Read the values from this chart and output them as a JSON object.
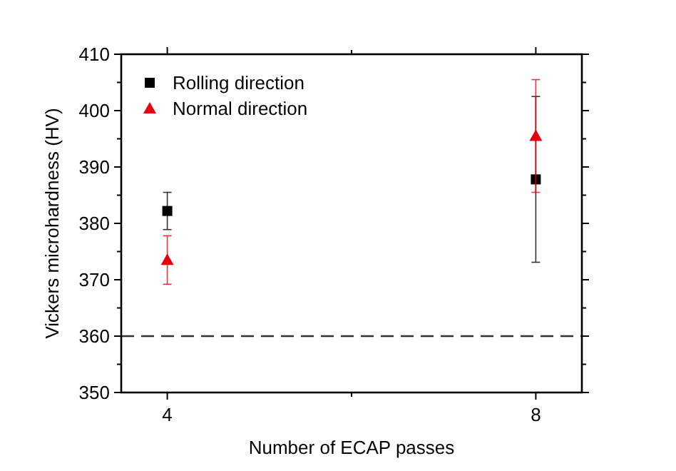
{
  "chart_data": {
    "type": "scatter",
    "xlabel": "Number of ECAP passes",
    "ylabel": "Vickers microhardness (HV)",
    "xlim": [
      3.5,
      8.5
    ],
    "xticks": [
      4,
      {
        "value": 6,
        "label": null
      },
      8
    ],
    "ylim": [
      350,
      410
    ],
    "yticks": [
      350,
      360,
      370,
      380,
      390,
      400,
      410
    ],
    "legend": "top left",
    "grid": false,
    "x": [
      4,
      8
    ],
    "series": [
      {
        "name": "Rolling direction",
        "color": "#000000",
        "marker": "square",
        "values": [
          382.2,
          387.8
        ],
        "errors": [
          3.3,
          14.7
        ]
      },
      {
        "name": "Normal direction",
        "color": "#e8000b",
        "marker": "triangle",
        "values": [
          373.5,
          395.5
        ],
        "errors": [
          4.3,
          10
        ]
      }
    ],
    "ref_lines": [
      {
        "axis": "y",
        "value": 360,
        "color": "#333333",
        "line_style": "dashed"
      }
    ]
  }
}
